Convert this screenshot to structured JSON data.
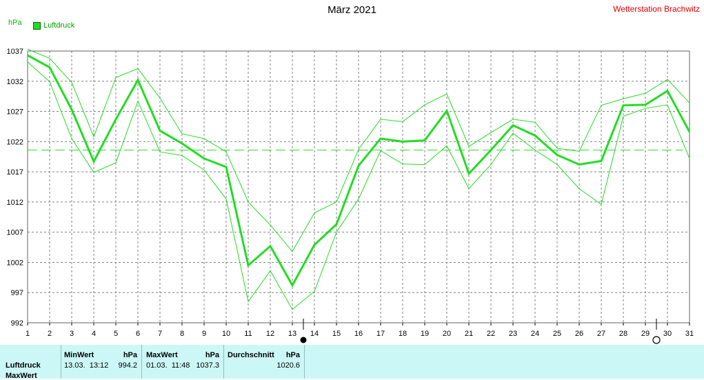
{
  "header": {
    "title": "März 2021",
    "station": "Wetterstation Brachwitz",
    "unit": "hPa",
    "legend_label": "Luftdruck"
  },
  "colors": {
    "series": "#22dd22",
    "band": "#22dd22",
    "grid": "#808080",
    "average": "#22dd22",
    "station": "#e00000",
    "stats_bg": "#ccf7f7"
  },
  "chart_data": {
    "type": "line",
    "title": "März 2021",
    "ylabel": "hPa",
    "ylim": [
      992,
      1037
    ],
    "yticks": [
      992,
      997,
      1002,
      1007,
      1012,
      1017,
      1022,
      1027,
      1032,
      1037
    ],
    "x": [
      1,
      2,
      3,
      4,
      5,
      6,
      7,
      8,
      9,
      10,
      11,
      12,
      13,
      14,
      15,
      16,
      17,
      18,
      19,
      20,
      21,
      22,
      23,
      24,
      25,
      26,
      27,
      28,
      29,
      30,
      31
    ],
    "xlim": [
      1,
      31
    ],
    "grid": true,
    "series": [
      {
        "name": "Luftdruck",
        "role": "mean",
        "values": [
          1036.3,
          1034.3,
          1027.3,
          1018.7,
          1025.7,
          1032.2,
          1023.8,
          1021.7,
          1019.2,
          1017.8,
          1001.5,
          1004.7,
          998.2,
          1004.9,
          1008.3,
          1018.0,
          1022.5,
          1022.0,
          1022.2,
          1027.1,
          1016.7,
          1020.6,
          1024.7,
          1023.0,
          1019.8,
          1018.2,
          1018.8,
          1028.0,
          1028.1,
          1030.4,
          1023.6
        ]
      },
      {
        "role": "max",
        "values": [
          1037.3,
          1035.8,
          1031.8,
          1022.8,
          1032.6,
          1034.1,
          1029.2,
          1023.3,
          1022.5,
          1020.3,
          1012.0,
          1008.2,
          1003.8,
          1010.2,
          1012.0,
          1020.7,
          1025.7,
          1025.3,
          1028.1,
          1029.9,
          1021.2,
          1023.5,
          1025.7,
          1025.2,
          1020.9,
          1020.4,
          1028.0,
          1029.1,
          1030.0,
          1032.3,
          1028.4
        ]
      },
      {
        "role": "min",
        "values": [
          1035.2,
          1031.9,
          1022.5,
          1016.9,
          1018.5,
          1028.7,
          1020.3,
          1019.7,
          1017.3,
          1012.5,
          995.5,
          1000.6,
          994.2,
          997.2,
          1007.0,
          1012.5,
          1020.5,
          1018.3,
          1018.2,
          1021.3,
          1014.2,
          1018.2,
          1023.4,
          1020.6,
          1018.2,
          1014.2,
          1011.6,
          1026.2,
          1027.5,
          1028.1,
          1019.2
        ]
      }
    ],
    "average_line": 1020.6,
    "moon_phases": [
      {
        "day": 13,
        "phase": "new"
      },
      {
        "day": 29,
        "phase": "full"
      }
    ]
  },
  "stats": {
    "row_labels": [
      "Luftdruck",
      "MaxWert"
    ],
    "min": {
      "header": "MinWert",
      "unit": "hPa",
      "datetime": "13.03.  13:12",
      "value": "994.2"
    },
    "max": {
      "header": "MaxWert",
      "unit": "hPa",
      "datetime": "01.03.  11:48",
      "value": "1037.3"
    },
    "avg": {
      "header": "Durchschnitt",
      "unit": "hPa",
      "value": "1020.6"
    }
  }
}
